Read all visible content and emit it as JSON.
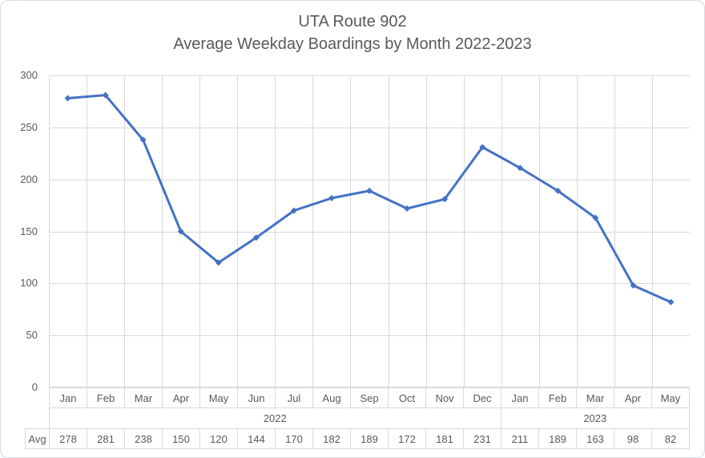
{
  "title": {
    "line1": "UTA Route 902",
    "line2": "Average Weekday Boardings by Month 2022-2023"
  },
  "chart_data": {
    "type": "line",
    "title": "UTA Route 902 Average Weekday Boardings by Month 2022-2023",
    "categories": [
      "Jan",
      "Feb",
      "Mar",
      "Apr",
      "May",
      "Jun",
      "Jul",
      "Aug",
      "Sep",
      "Oct",
      "Nov",
      "Dec",
      "Jan",
      "Feb",
      "Mar",
      "Apr",
      "May"
    ],
    "year_groups": [
      {
        "label": "2022",
        "span": 12
      },
      {
        "label": "2023",
        "span": 5
      }
    ],
    "series": [
      {
        "name": "Avg",
        "values": [
          278,
          281,
          238,
          150,
          120,
          144,
          170,
          182,
          189,
          172,
          181,
          231,
          211,
          189,
          163,
          98,
          82
        ]
      }
    ],
    "xlabel": "",
    "ylabel": "",
    "ylim": [
      0,
      300
    ],
    "yticks": [
      0,
      50,
      100,
      150,
      200,
      250,
      300
    ],
    "grid": true,
    "legend": "none",
    "marker": "diamond"
  },
  "colors": {
    "line": "#4472C4",
    "grid": "#D9D9D9",
    "table_border": "#D9D9D9",
    "text": "#595959",
    "background": "#FFFFFF"
  }
}
